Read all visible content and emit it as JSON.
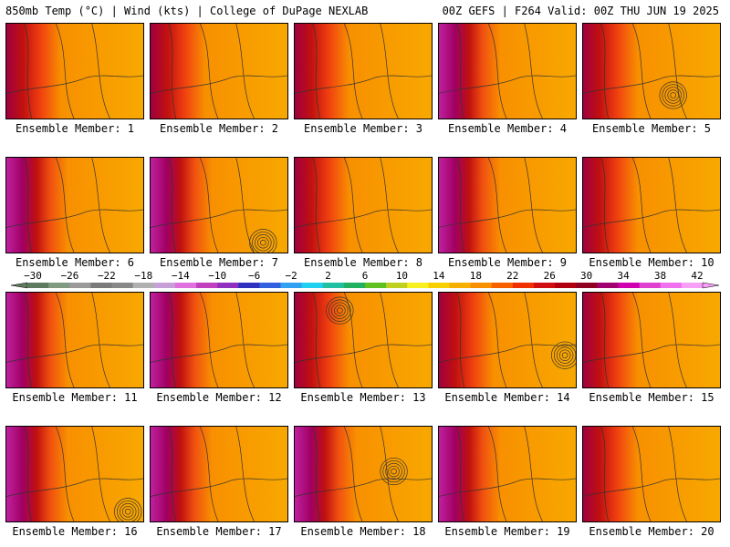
{
  "header": {
    "left": "850mb Temp (°C) | Wind (kts) | College of DuPage NEXLAB",
    "right": "00Z GEFS | F264 Valid: 00Z THU JUN 19 2025"
  },
  "members": [
    "Ensemble Member: 1",
    "Ensemble Member: 2",
    "Ensemble Member: 3",
    "Ensemble Member: 4",
    "Ensemble Member: 5",
    "Ensemble Member: 6",
    "Ensemble Member: 7",
    "Ensemble Member: 8",
    "Ensemble Member: 9",
    "Ensemble Member: 10",
    "Ensemble Member: 11",
    "Ensemble Member: 12",
    "Ensemble Member: 13",
    "Ensemble Member: 14",
    "Ensemble Member: 15",
    "Ensemble Member: 16",
    "Ensemble Member: 17",
    "Ensemble Member: 18",
    "Ensemble Member: 19",
    "Ensemble Member: 20"
  ],
  "colorbar": {
    "labels": [
      "−30",
      "−26",
      "−22",
      "−18",
      "−14",
      "−10",
      "−6",
      "−2",
      "2",
      "6",
      "10",
      "14",
      "18",
      "22",
      "26",
      "30",
      "34",
      "38",
      "42"
    ],
    "colors": [
      "#5e7a5e",
      "#7f9a7f",
      "#9a9a9a",
      "#7a7a7a",
      "#888888",
      "#b0b0b0",
      "#c8a0d8",
      "#e070e0",
      "#c040c0",
      "#9030c0",
      "#3030c0",
      "#3060e0",
      "#30a0f0",
      "#20d0f0",
      "#20c0a0",
      "#20b060",
      "#60c020",
      "#c0d020",
      "#f8f020",
      "#f8d000",
      "#f8b000",
      "#f89000",
      "#f86000",
      "#f03000",
      "#d01010",
      "#b00010",
      "#900020",
      "#a00070",
      "#d000b0",
      "#e040d0",
      "#f070f0",
      "#f8a0f8"
    ]
  }
}
